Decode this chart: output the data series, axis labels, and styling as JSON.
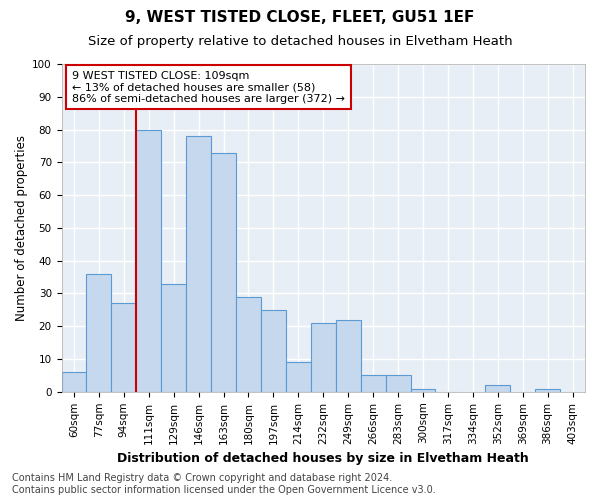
{
  "title1": "9, WEST TISTED CLOSE, FLEET, GU51 1EF",
  "title2": "Size of property relative to detached houses in Elvetham Heath",
  "xlabel": "Distribution of detached houses by size in Elvetham Heath",
  "ylabel": "Number of detached properties",
  "categories": [
    "60sqm",
    "77sqm",
    "94sqm",
    "111sqm",
    "129sqm",
    "146sqm",
    "163sqm",
    "180sqm",
    "197sqm",
    "214sqm",
    "232sqm",
    "249sqm",
    "266sqm",
    "283sqm",
    "300sqm",
    "317sqm",
    "334sqm",
    "352sqm",
    "369sqm",
    "386sqm",
    "403sqm"
  ],
  "values": [
    6,
    36,
    27,
    80,
    33,
    78,
    73,
    29,
    25,
    9,
    21,
    22,
    5,
    5,
    1,
    0,
    0,
    2,
    0,
    1,
    0
  ],
  "bar_color": "#c5d8ed",
  "bar_edge_color": "#5b9bd5",
  "plot_bg_color": "#e8eef5",
  "fig_bg_color": "#ffffff",
  "grid_color": "#ffffff",
  "vline_index": 3,
  "vline_color": "#cc0000",
  "annotation_text": "9 WEST TISTED CLOSE: 109sqm\n← 13% of detached houses are smaller (58)\n86% of semi-detached houses are larger (372) →",
  "annotation_box_facecolor": "#ffffff",
  "annotation_box_edgecolor": "#cc0000",
  "footer_text": "Contains HM Land Registry data © Crown copyright and database right 2024.\nContains public sector information licensed under the Open Government Licence v3.0.",
  "ylim": [
    0,
    100
  ],
  "title1_fontsize": 11,
  "title2_fontsize": 9.5,
  "xlabel_fontsize": 9,
  "ylabel_fontsize": 8.5,
  "tick_fontsize": 7.5,
  "ann_fontsize": 8,
  "footer_fontsize": 7
}
